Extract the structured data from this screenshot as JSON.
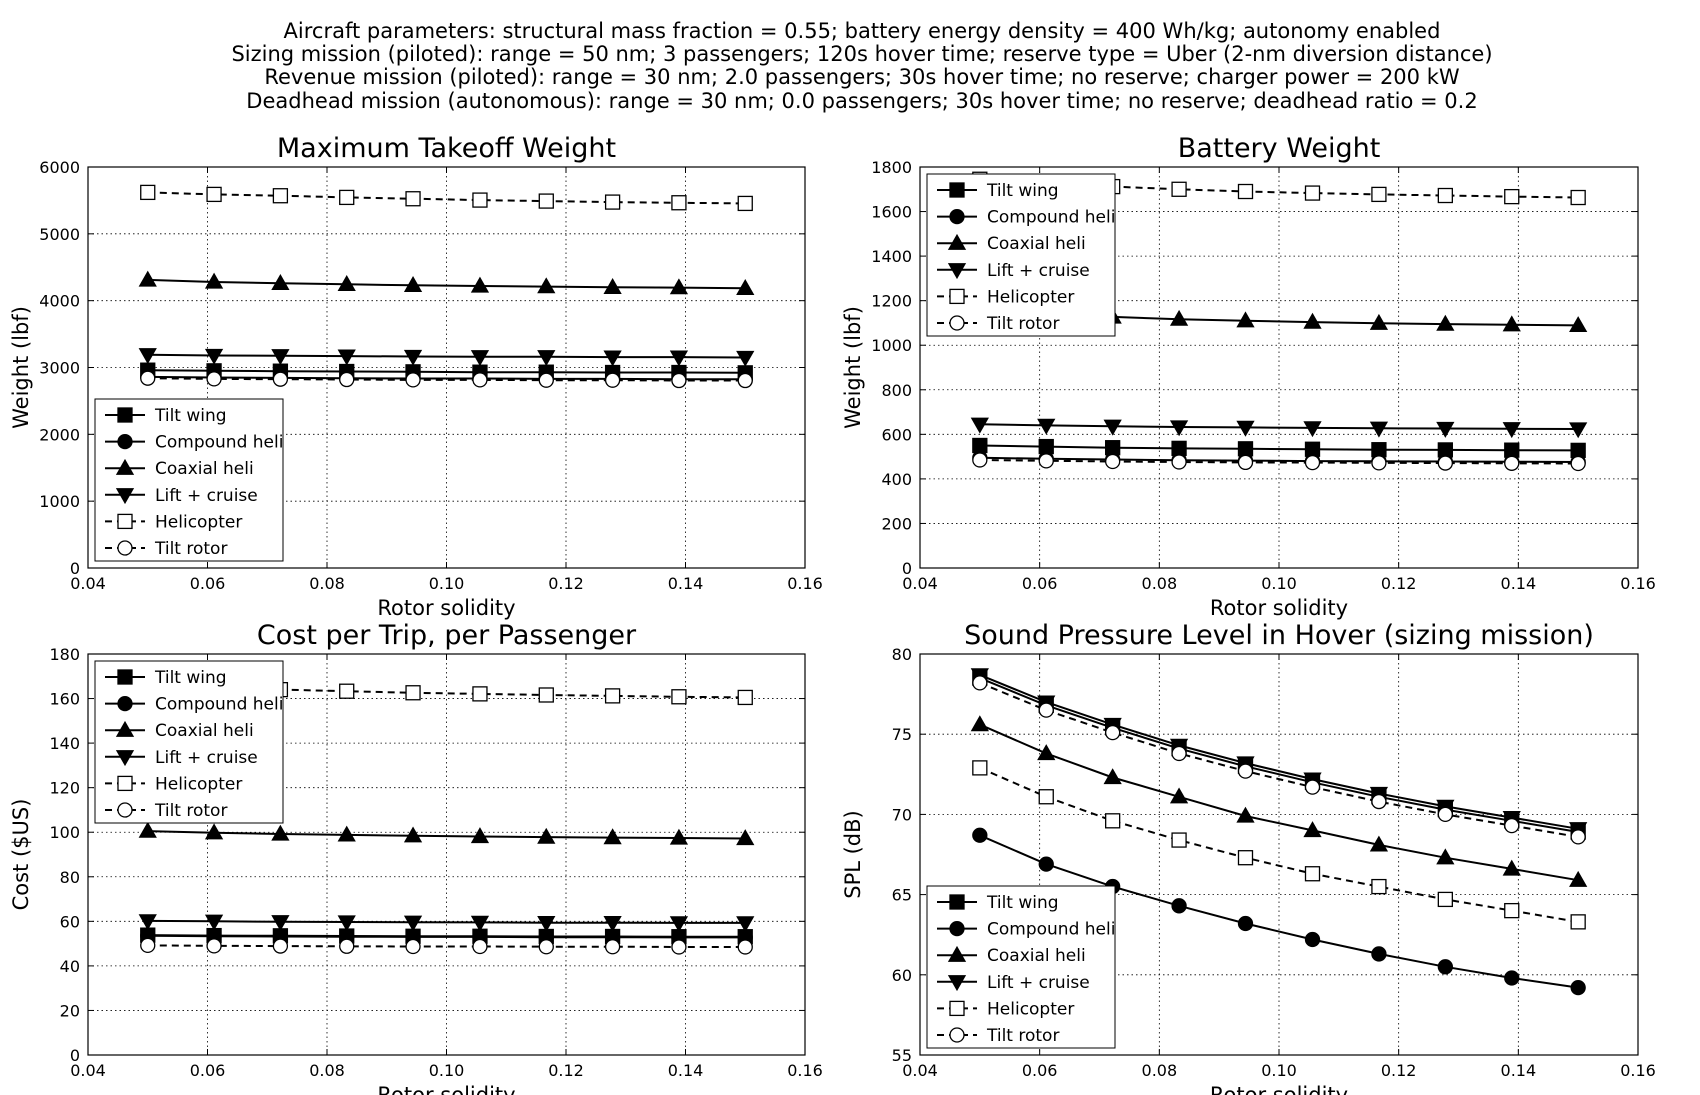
{
  "figure": {
    "suptitle": [
      "Aircraft parameters: structural mass fraction = 0.55; battery energy density = 400 Wh/kg; autonomy enabled",
      "Sizing mission (piloted): range = 50 nm; 3 passengers; 120s hover time; reserve type = Uber (2-nm diversion distance)",
      "Revenue mission (piloted): range = 30 nm; 2.0 passengers; 30s hover time; no reserve; charger power = 200 kW",
      "Deadhead mission (autonomous): range = 30 nm; 0.0 passengers; 30s hover time; no reserve; deadhead ratio = 0.2"
    ]
  },
  "series_styles": [
    {
      "name": "Tilt wing",
      "marker": "square",
      "fill": "#000000",
      "linestyle": "solid"
    },
    {
      "name": "Compound heli",
      "marker": "circle",
      "fill": "#000000",
      "linestyle": "solid"
    },
    {
      "name": "Coaxial heli",
      "marker": "triangle-up",
      "fill": "#000000",
      "linestyle": "solid"
    },
    {
      "name": "Lift + cruise",
      "marker": "triangle-down",
      "fill": "#000000",
      "linestyle": "solid"
    },
    {
      "name": "Helicopter",
      "marker": "square",
      "fill": "#ffffff",
      "linestyle": "dashed"
    },
    {
      "name": "Tilt rotor",
      "marker": "circle",
      "fill": "#ffffff",
      "linestyle": "dashed"
    }
  ],
  "chart_data": [
    {
      "type": "line",
      "title": "Maximum Takeoff Weight",
      "xlabel": "Rotor solidity",
      "ylabel": "Weight (lbf)",
      "xlim": [
        0.04,
        0.16
      ],
      "ylim": [
        0,
        6000
      ],
      "xticks": [
        "0.04",
        "0.06",
        "0.08",
        "0.10",
        "0.12",
        "0.14",
        "0.16"
      ],
      "yticks": [
        "0",
        "1000",
        "2000",
        "3000",
        "4000",
        "5000",
        "6000"
      ],
      "grid": true,
      "legend": "lower left",
      "x": [
        0.05,
        0.0611,
        0.0722,
        0.0833,
        0.0944,
        0.1056,
        0.1167,
        0.1278,
        0.1389,
        0.15
      ],
      "series": [
        {
          "name": "Tilt wing",
          "values": [
            2960,
            2950,
            2945,
            2940,
            2935,
            2930,
            2930,
            2925,
            2925,
            2920
          ]
        },
        {
          "name": "Compound heli",
          "values": [
            2860,
            2850,
            2845,
            2840,
            2835,
            2835,
            2830,
            2830,
            2825,
            2825
          ]
        },
        {
          "name": "Coaxial heli",
          "values": [
            4310,
            4280,
            4260,
            4245,
            4230,
            4220,
            4210,
            4200,
            4195,
            4185
          ]
        },
        {
          "name": "Lift + cruise",
          "values": [
            3190,
            3180,
            3175,
            3170,
            3165,
            3160,
            3160,
            3155,
            3155,
            3150
          ]
        },
        {
          "name": "Helicopter",
          "values": [
            5620,
            5590,
            5570,
            5545,
            5525,
            5505,
            5490,
            5475,
            5465,
            5455
          ]
        },
        {
          "name": "Tilt rotor",
          "values": [
            2840,
            2830,
            2825,
            2820,
            2815,
            2815,
            2810,
            2810,
            2805,
            2805
          ]
        }
      ]
    },
    {
      "type": "line",
      "title": "Battery Weight",
      "xlabel": "Rotor solidity",
      "ylabel": "Weight (lbf)",
      "xlim": [
        0.04,
        0.16
      ],
      "ylim": [
        0,
        1800
      ],
      "xticks": [
        "0.04",
        "0.06",
        "0.08",
        "0.10",
        "0.12",
        "0.14",
        "0.16"
      ],
      "yticks": [
        "0",
        "200",
        "400",
        "600",
        "800",
        "1000",
        "1200",
        "1400",
        "1600",
        "1800"
      ],
      "grid": true,
      "legend": "upper left",
      "x": [
        0.05,
        0.0611,
        0.0722,
        0.0833,
        0.0944,
        0.1056,
        0.1167,
        0.1278,
        0.1389,
        0.15
      ],
      "series": [
        {
          "name": "Tilt wing",
          "values": [
            550,
            545,
            540,
            537,
            535,
            533,
            531,
            530,
            529,
            528
          ]
        },
        {
          "name": "Compound heli",
          "values": [
            495,
            490,
            487,
            484,
            482,
            480,
            479,
            478,
            477,
            476
          ]
        },
        {
          "name": "Coaxial heli",
          "values": [
            1155,
            1140,
            1127,
            1117,
            1110,
            1104,
            1099,
            1095,
            1092,
            1089
          ]
        },
        {
          "name": "Lift + cruise",
          "values": [
            645,
            640,
            636,
            633,
            631,
            629,
            627,
            626,
            625,
            624
          ]
        },
        {
          "name": "Helicopter",
          "values": [
            1745,
            1725,
            1712,
            1700,
            1690,
            1683,
            1677,
            1672,
            1667,
            1663
          ]
        },
        {
          "name": "Tilt rotor",
          "values": [
            485,
            481,
            478,
            476,
            474,
            473,
            472,
            471,
            470,
            469
          ]
        }
      ]
    },
    {
      "type": "line",
      "title": "Cost per Trip, per Passenger",
      "xlabel": "Rotor solidity",
      "ylabel": "Cost ($US)",
      "xlim": [
        0.04,
        0.16
      ],
      "ylim": [
        0,
        180
      ],
      "xticks": [
        "0.04",
        "0.06",
        "0.08",
        "0.10",
        "0.12",
        "0.14",
        "0.16"
      ],
      "yticks": [
        "0",
        "20",
        "40",
        "60",
        "80",
        "100",
        "120",
        "140",
        "160",
        "180"
      ],
      "grid": true,
      "legend": "upper left",
      "x": [
        0.05,
        0.0611,
        0.0722,
        0.0833,
        0.0944,
        0.1056,
        0.1167,
        0.1278,
        0.1389,
        0.15
      ],
      "series": [
        {
          "name": "Tilt wing",
          "values": [
            53.8,
            53.6,
            53.5,
            53.4,
            53.3,
            53.3,
            53.2,
            53.2,
            53.1,
            53.1
          ]
        },
        {
          "name": "Compound heli",
          "values": [
            53.5,
            53.3,
            53.2,
            53.1,
            53.0,
            53.0,
            52.9,
            52.9,
            52.8,
            52.8
          ]
        },
        {
          "name": "Coaxial heli",
          "values": [
            100.5,
            99.8,
            99.2,
            98.8,
            98.4,
            98.1,
            97.8,
            97.6,
            97.4,
            97.2
          ]
        },
        {
          "name": "Lift + cruise",
          "values": [
            60.2,
            60.0,
            59.8,
            59.7,
            59.6,
            59.5,
            59.4,
            59.4,
            59.3,
            59.3
          ]
        },
        {
          "name": "Helicopter",
          "values": [
            166.0,
            164.9,
            164.0,
            163.3,
            162.6,
            162.1,
            161.6,
            161.2,
            160.8,
            160.5
          ]
        },
        {
          "name": "Tilt rotor",
          "values": [
            49.2,
            49.0,
            48.9,
            48.8,
            48.7,
            48.7,
            48.6,
            48.6,
            48.5,
            48.5
          ]
        }
      ]
    },
    {
      "type": "line",
      "title": "Sound Pressure Level in Hover (sizing mission)",
      "xlabel": "Rotor solidity",
      "ylabel": "SPL (dB)",
      "xlim": [
        0.04,
        0.16
      ],
      "ylim": [
        55,
        80
      ],
      "xticks": [
        "0.04",
        "0.06",
        "0.08",
        "0.10",
        "0.12",
        "0.14",
        "0.16"
      ],
      "yticks": [
        "55",
        "60",
        "65",
        "70",
        "75",
        "80"
      ],
      "grid": true,
      "legend": "lower left",
      "x": [
        0.05,
        0.0611,
        0.0722,
        0.0833,
        0.0944,
        0.1056,
        0.1167,
        0.1278,
        0.1389,
        0.15
      ],
      "series": [
        {
          "name": "Tilt wing",
          "values": [
            78.5,
            76.8,
            75.4,
            74.1,
            73.0,
            72.0,
            71.1,
            70.3,
            69.6,
            68.9
          ]
        },
        {
          "name": "Compound heli",
          "values": [
            68.7,
            66.9,
            65.5,
            64.3,
            63.2,
            62.2,
            61.3,
            60.5,
            59.8,
            59.2
          ]
        },
        {
          "name": "Coaxial heli",
          "values": [
            75.6,
            73.8,
            72.3,
            71.1,
            69.9,
            69.0,
            68.1,
            67.3,
            66.6,
            65.9
          ]
        },
        {
          "name": "Lift + cruise",
          "values": [
            78.7,
            77.0,
            75.6,
            74.3,
            73.2,
            72.2,
            71.3,
            70.5,
            69.8,
            69.1
          ]
        },
        {
          "name": "Helicopter",
          "values": [
            72.9,
            71.1,
            69.6,
            68.4,
            67.3,
            66.3,
            65.5,
            64.7,
            64.0,
            63.3
          ]
        },
        {
          "name": "Tilt rotor",
          "values": [
            78.2,
            76.5,
            75.1,
            73.8,
            72.7,
            71.7,
            70.8,
            70.0,
            69.3,
            68.6
          ]
        }
      ]
    }
  ]
}
